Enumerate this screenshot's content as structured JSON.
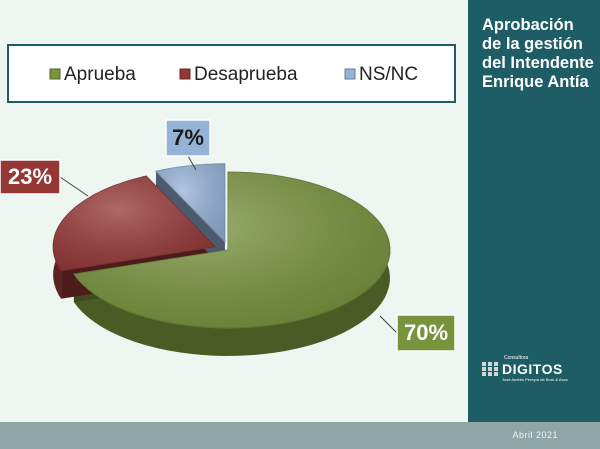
{
  "chart_data": {
    "type": "pie",
    "series": [
      {
        "name": "Aprueba",
        "color": "#77933c",
        "values": [
          70
        ],
        "value_labels": [
          "70%"
        ]
      },
      {
        "name": "Desaprueba",
        "color": "#953735",
        "values": [
          23
        ],
        "value_labels": [
          "23%"
        ]
      },
      {
        "name": "NS/NC",
        "color": "#95b3d7",
        "values": [
          7
        ],
        "value_labels": [
          "7%"
        ]
      }
    ],
    "legend": "top"
  },
  "panel": {
    "title": "Aprobación de la gestión del Intendente Enrique Antía",
    "logo": {
      "tagline": "Consultora",
      "name": "DIGITOS",
      "owner": "José Andrés Pereyra de Brun & Asoc"
    },
    "date": "Abril 2021"
  }
}
